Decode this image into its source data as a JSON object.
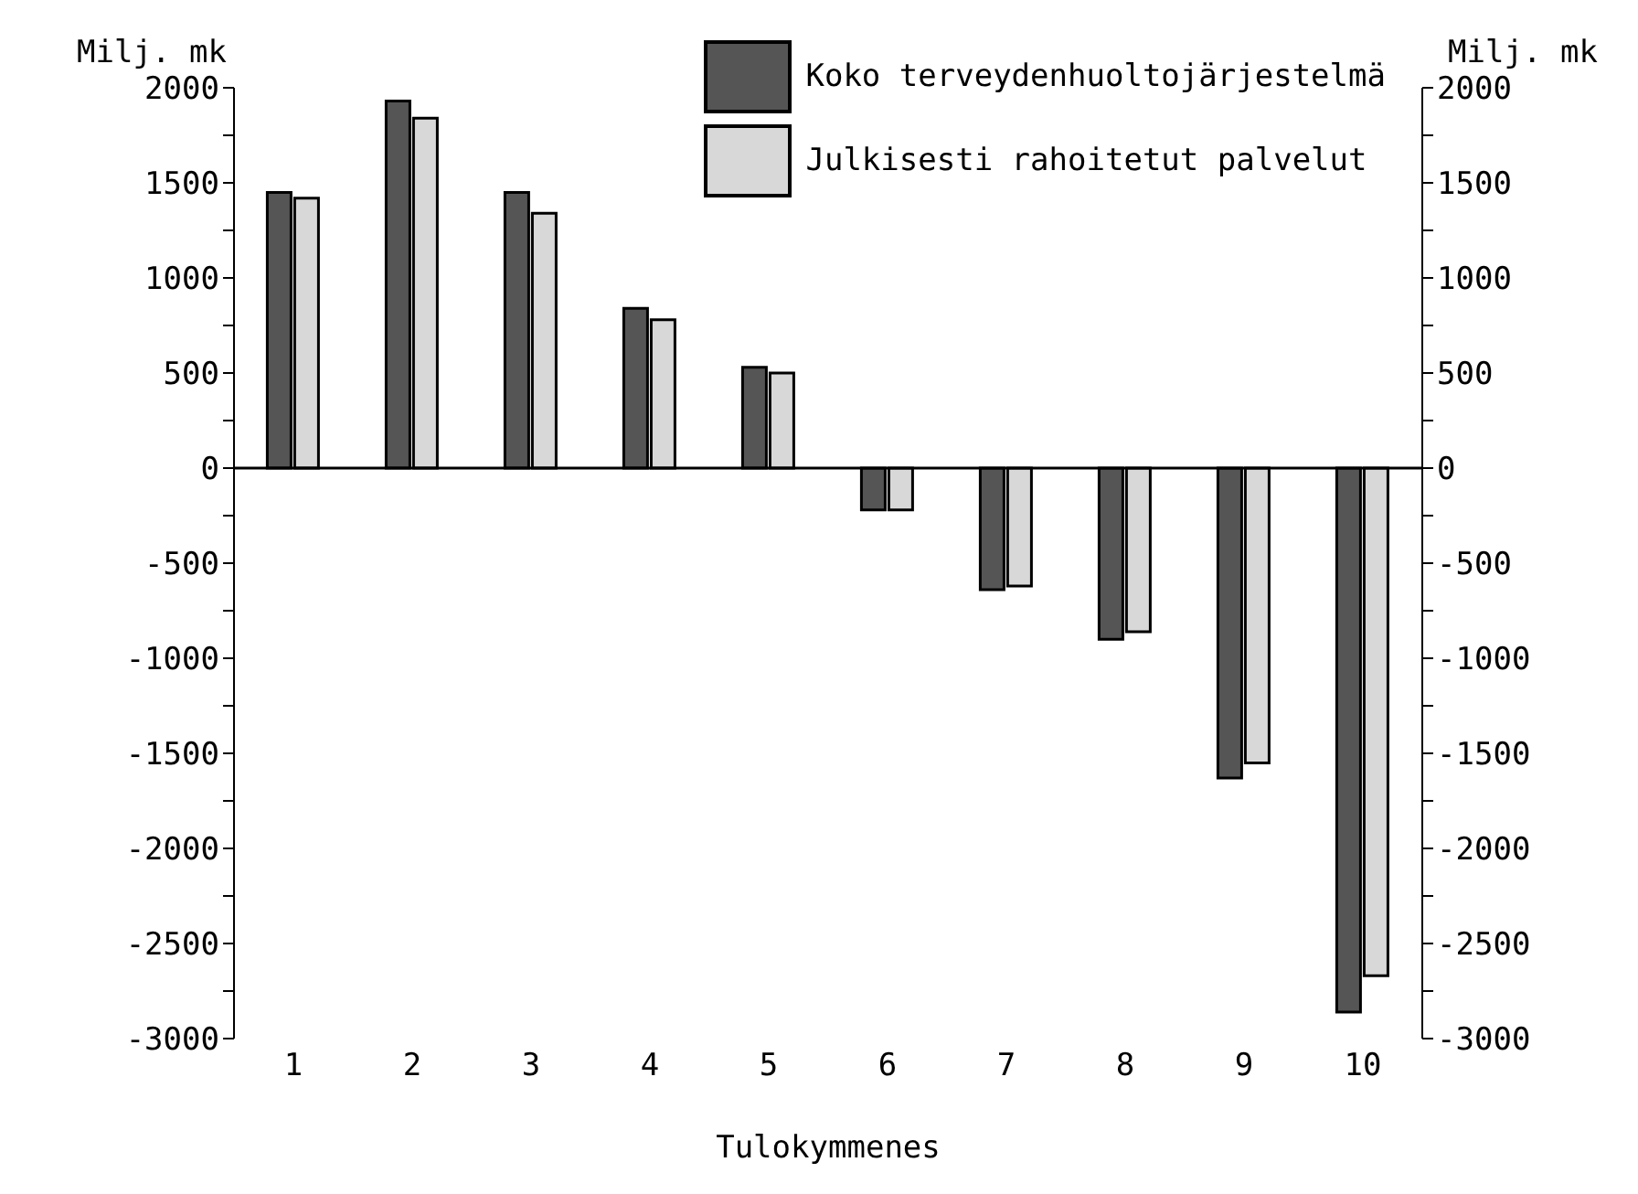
{
  "chart_data": {
    "type": "bar",
    "xlabel": "Tulokymmenes",
    "ylabel": "Milj. mk",
    "y2label": "Milj. mk",
    "categories": [
      "1",
      "2",
      "3",
      "4",
      "5",
      "6",
      "7",
      "8",
      "9",
      "10"
    ],
    "series": [
      {
        "name": "Koko terveydenhuoltojärjestelmä",
        "color": "#555555",
        "values": [
          1450,
          1930,
          1450,
          840,
          530,
          -220,
          -640,
          -900,
          -1630,
          -2860
        ]
      },
      {
        "name": "Julkisesti rahoitetut palvelut",
        "color": "#d8d8d8",
        "values": [
          1420,
          1840,
          1340,
          780,
          500,
          -220,
          -620,
          -860,
          -1550,
          -2670
        ]
      }
    ],
    "ylim": [
      -3000,
      2000
    ],
    "yticks": [
      -3000,
      {
        "value": -2750,
        "label": null
      },
      -2500,
      {
        "value": -2250,
        "label": null
      },
      -2000,
      {
        "value": -1750,
        "label": null
      },
      -1500,
      {
        "value": -1250,
        "label": null
      },
      -1000,
      {
        "value": -750,
        "label": null
      },
      -500,
      {
        "value": -250,
        "label": null
      },
      0,
      {
        "value": 250,
        "label": null
      },
      500,
      {
        "value": 750,
        "label": null
      },
      1000,
      {
        "value": 1250,
        "label": null
      },
      1500,
      {
        "value": 1750,
        "label": null
      },
      2000
    ],
    "y2lim": [
      -3000,
      2000
    ],
    "y2ticks": [
      -3000,
      {
        "value": -2750,
        "label": null
      },
      -2500,
      {
        "value": -2250,
        "label": null
      },
      -2000,
      {
        "value": -1750,
        "label": null
      },
      -1500,
      {
        "value": -1250,
        "label": null
      },
      -1000,
      {
        "value": -750,
        "label": null
      },
      -500,
      {
        "value": -250,
        "label": null
      },
      0,
      {
        "value": 250,
        "label": null
      },
      500,
      {
        "value": 750,
        "label": null
      },
      1000,
      {
        "value": 1250,
        "label": null
      },
      1500,
      {
        "value": 1750,
        "label": null
      },
      2000
    ],
    "ref_lines": [
      {
        "axis": "y",
        "value": 0
      }
    ],
    "grid": false,
    "legend": "top right"
  }
}
